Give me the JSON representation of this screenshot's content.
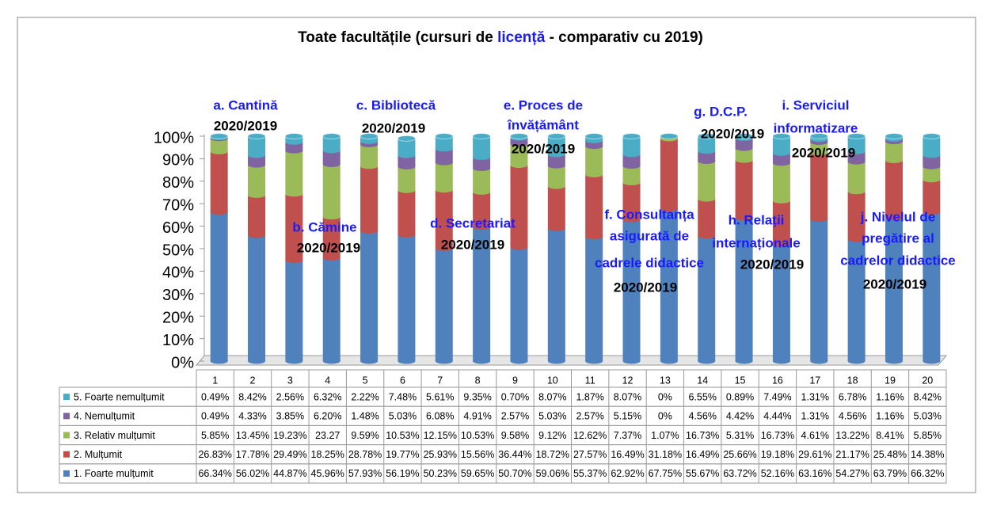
{
  "chart_data": {
    "type": "stacked_bar",
    "title": [
      "Toate facultățile (cursuri de ",
      "licență",
      " - comparativ cu 2019)"
    ],
    "categories": [
      "1",
      "2",
      "3",
      "4",
      "5",
      "6",
      "7",
      "8",
      "9",
      "10",
      "11",
      "12",
      "13",
      "14",
      "15",
      "16",
      "17",
      "18",
      "19",
      "20"
    ],
    "ylim": [
      0,
      100
    ],
    "yticks": [
      {
        "value": 0,
        "label": "0%"
      },
      {
        "value": 10,
        "label": "10%"
      },
      {
        "value": 20,
        "label": "20%"
      },
      {
        "value": 30,
        "label": "30%"
      },
      {
        "value": 40,
        "label": "40%"
      },
      {
        "value": 50,
        "label": "50%"
      },
      {
        "value": 60,
        "label": "60%"
      },
      {
        "value": 70,
        "label": "70%"
      },
      {
        "value": 80,
        "label": "80%"
      },
      {
        "value": 90,
        "label": "90%"
      },
      {
        "value": 100,
        "label": "100%"
      }
    ],
    "series": [
      {
        "name": "1. Foarte mulțumit",
        "color": "#4f81bd",
        "values": [
          66.34,
          56.02,
          44.87,
          45.96,
          57.93,
          56.19,
          50.23,
          59.65,
          50.7,
          59.06,
          55.37,
          62.92,
          67.75,
          55.67,
          63.72,
          52.16,
          63.16,
          54.27,
          63.79,
          66.32
        ],
        "value_labels": [
          "66.34%",
          "56.02%",
          "44.87%",
          "45.96%",
          "57.93%",
          "56.19%",
          "50.23%",
          "59.65%",
          "50.70%",
          "59.06%",
          "55.37%",
          "62.92%",
          "67.75%",
          "55.67%",
          "63.72%",
          "52.16%",
          "63.16%",
          "54.27%",
          "63.79%",
          "66.32%"
        ]
      },
      {
        "name": "2. Mulțumit",
        "color": "#c0504d",
        "values": [
          26.83,
          17.78,
          29.49,
          18.25,
          28.78,
          19.77,
          25.93,
          15.56,
          36.44,
          18.72,
          27.57,
          16.49,
          31.18,
          16.49,
          25.66,
          19.18,
          29.61,
          21.17,
          25.48,
          14.38
        ],
        "value_labels": [
          "26.83%",
          "17.78%",
          "29.49%",
          "18.25%",
          "28.78%",
          "19.77%",
          "25.93%",
          "15.56%",
          "36.44%",
          "18.72%",
          "27.57%",
          "16.49%",
          "31.18%",
          "16.49%",
          "25.66%",
          "19.18%",
          "29.61%",
          "21.17%",
          "25.48%",
          "14.38%"
        ]
      },
      {
        "name": "3. Relativ mulțumit",
        "color": "#9bbb59",
        "values": [
          5.85,
          13.45,
          19.23,
          23.27,
          9.59,
          10.53,
          12.15,
          10.53,
          9.58,
          9.12,
          12.62,
          7.37,
          1.07,
          16.73,
          5.31,
          16.73,
          4.61,
          13.22,
          8.41,
          5.85
        ],
        "value_labels": [
          "5.85%",
          "13.45%",
          "19.23%",
          "23.27",
          "9.59%",
          "10.53%",
          "12.15%",
          "10.53%",
          "9.58%",
          "9.12%",
          "12.62%",
          "7.37%",
          "1.07%",
          "16.73%",
          "5.31%",
          "16.73%",
          "4.61%",
          "13.22%",
          "8.41%",
          "5.85%"
        ]
      },
      {
        "name": "4. Nemulțumit",
        "color": "#8064a2",
        "values": [
          0.49,
          4.33,
          3.85,
          6.2,
          1.48,
          5.03,
          6.08,
          4.91,
          2.57,
          5.03,
          2.57,
          5.15,
          0,
          4.56,
          4.42,
          4.44,
          1.31,
          4.56,
          1.16,
          5.03
        ],
        "value_labels": [
          "0.49%",
          "4.33%",
          "3.85%",
          "6.20%",
          "1.48%",
          "5.03%",
          "6.08%",
          "4.91%",
          "2.57%",
          "5.03%",
          "2.57%",
          "5.15%",
          "0%",
          "4.56%",
          "4.42%",
          "4.44%",
          "1.31%",
          "4.56%",
          "1.16%",
          "5.03%"
        ]
      },
      {
        "name": "5. Foarte nemulțumit",
        "color": "#4bacc6",
        "values": [
          0.49,
          8.42,
          2.56,
          6.32,
          2.22,
          7.48,
          5.61,
          9.35,
          0.7,
          8.07,
          1.87,
          8.07,
          0,
          6.55,
          0.89,
          7.49,
          1.31,
          6.78,
          1.16,
          8.42
        ],
        "value_labels": [
          "0.49%",
          "8.42%",
          "2.56%",
          "6.32%",
          "2.22%",
          "7.48%",
          "5.61%",
          "9.35%",
          "0.70%",
          "8.07%",
          "1.87%",
          "8.07%",
          "0%",
          "6.55%",
          "0.89%",
          "7.49%",
          "1.31%",
          "6.78%",
          "1.16%",
          "8.42%"
        ]
      }
    ],
    "annotations": [
      {
        "lines": [
          "a. Cantină"
        ],
        "sub": "2020/2019"
      },
      {
        "lines": [
          "b. Cămine"
        ],
        "sub": "2020/2019"
      },
      {
        "lines": [
          "c. Bibliotecă"
        ],
        "sub": "2020/2019"
      },
      {
        "lines": [
          "d. Secretariat"
        ],
        "sub": "2020/2019"
      },
      {
        "lines": [
          "e. Proces de",
          "învățământ"
        ],
        "sub": "2020/2019"
      },
      {
        "lines": [
          "f. Consultanța",
          "asigurată de",
          "cadrele didactice"
        ],
        "sub": "2020/2019"
      },
      {
        "lines": [
          "g. D.C.P."
        ],
        "sub": "2020/2019"
      },
      {
        "lines": [
          "h. Relații",
          "internaționale"
        ],
        "sub": "2020/2019"
      },
      {
        "lines": [
          "i. Serviciul",
          "informatizare"
        ],
        "sub": "2020/2019"
      },
      {
        "lines": [
          "j. Nivelul de",
          "pregătire al",
          "cadrelor didactice"
        ],
        "sub": "2020/2019"
      }
    ]
  }
}
